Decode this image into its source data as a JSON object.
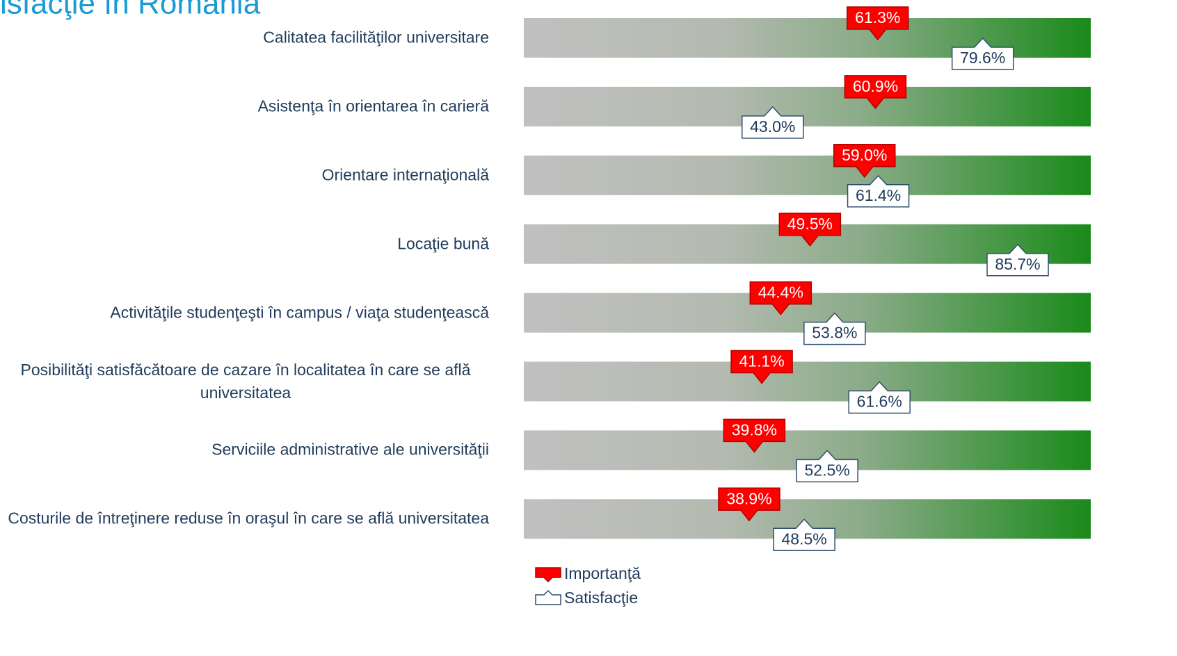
{
  "chart_data": {
    "type": "marker-bar",
    "title": "isfacţie în România",
    "categories": [
      "Calitatea facilităţilor universitare",
      "Asistenţa în orientarea în carieră",
      "Orientare internaţională",
      "Locaţie bună",
      "Activităţile studenţeşti în campus / viaţa studenţească",
      "Posibilităţi satisfăcătoare de cazare în localitatea în care se află universitatea",
      "Serviciile administrative ale universităţii",
      "Costurile de întreţinere reduse în oraşul în care se află universitatea"
    ],
    "xlim": [
      0,
      100
    ],
    "series": [
      {
        "name": "Importanţă",
        "color": "#ff0000",
        "values": [
          61.3,
          60.9,
          59.0,
          49.5,
          44.4,
          41.1,
          39.8,
          38.9
        ],
        "value_labels": [
          "61.3%",
          "60.9%",
          "59.0%",
          "49.5%",
          "44.4%",
          "41.1%",
          "39.8%",
          "38.9%"
        ]
      },
      {
        "name": "Satisfacţie",
        "color": "#ffffff",
        "values": [
          79.6,
          43.0,
          61.4,
          85.7,
          53.8,
          61.6,
          52.5,
          48.5
        ],
        "value_labels": [
          "79.6%",
          "43.0%",
          "61.4%",
          "85.7%",
          "53.8%",
          "61.6%",
          "52.5%",
          "48.5%"
        ]
      }
    ],
    "legend": "bottom-left"
  }
}
